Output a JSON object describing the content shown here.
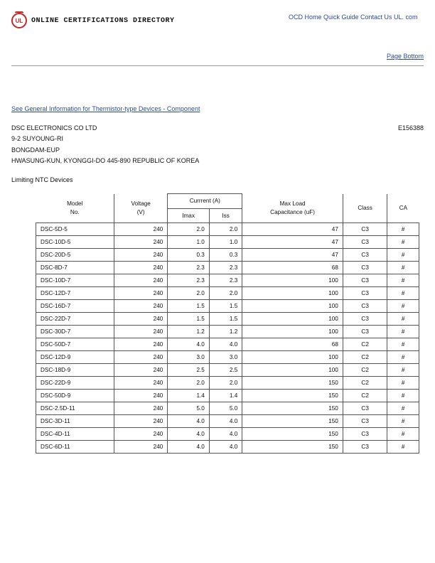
{
  "header": {
    "ul_mark": "UL",
    "directory_title": "ONLINE CERTIFICATIONS DIRECTORY",
    "nav": "OCD Home Quick Guide Contact Us UL. com",
    "page_bottom_link": "Page Bottom"
  },
  "general_info_link": "See General Information for Thermistor-type Devices - Component",
  "company": {
    "name": "DSC ELECTRONICS CO LTD",
    "addr1": "9-2 SUYOUNG-RI",
    "addr2": "BONGDAM-EUP",
    "addr3": "HWASUNG-KUN, KYONGGI-DO 445-890 REPUBLIC OF KOREA",
    "code": "E156388"
  },
  "subtitle": "Limiting NTC Devices",
  "table": {
    "group_header": "Currrent (A)",
    "columns": {
      "model": "Model\nNo.",
      "voltage": "Voltage\n(V)",
      "imax": "Imax",
      "iss": "Iss",
      "maxload": "Max Load\nCapacitance (uF)",
      "class": "Class",
      "ca": "CA"
    },
    "rows": [
      {
        "model": "DSC-5D-5",
        "v": "240",
        "imax": "2.0",
        "iss": "2.0",
        "ml": "47",
        "cls": "C3",
        "ca": "#"
      },
      {
        "model": "DSC-10D-5",
        "v": "240",
        "imax": "1.0",
        "iss": "1.0",
        "ml": "47",
        "cls": "C3",
        "ca": "#"
      },
      {
        "model": "DSC-20D-5",
        "v": "240",
        "imax": "0.3",
        "iss": "0.3",
        "ml": "47",
        "cls": "C3",
        "ca": "#"
      },
      {
        "model": "DSC-8D-7",
        "v": "240",
        "imax": "2.3",
        "iss": "2.3",
        "ml": "68",
        "cls": "C3",
        "ca": "#"
      },
      {
        "model": "DSC-10D-7",
        "v": "240",
        "imax": "2.3",
        "iss": "2.3",
        "ml": "100",
        "cls": "C3",
        "ca": "#"
      },
      {
        "model": "DSC-12D-7",
        "v": "240",
        "imax": "2.0",
        "iss": "2.0",
        "ml": "100",
        "cls": "C3",
        "ca": "#"
      },
      {
        "model": "DSC-16D-7",
        "v": "240",
        "imax": "1.5",
        "iss": "1.5",
        "ml": "100",
        "cls": "C3",
        "ca": "#"
      },
      {
        "model": "DSC-22D-7",
        "v": "240",
        "imax": "1.5",
        "iss": "1.5",
        "ml": "100",
        "cls": "C3",
        "ca": "#"
      },
      {
        "model": "DSC-30D-7",
        "v": "240",
        "imax": "1.2",
        "iss": "1.2",
        "ml": "100",
        "cls": "C3",
        "ca": "#"
      },
      {
        "model": "DSC-50D-7",
        "v": "240",
        "imax": "4.0",
        "iss": "4.0",
        "ml": "68",
        "cls": "C2",
        "ca": "#"
      },
      {
        "model": "DSC-12D-9",
        "v": "240",
        "imax": "3.0",
        "iss": "3.0",
        "ml": "100",
        "cls": "C2",
        "ca": "#"
      },
      {
        "model": "DSC-18D-9",
        "v": "240",
        "imax": "2.5",
        "iss": "2.5",
        "ml": "100",
        "cls": "C2",
        "ca": "#"
      },
      {
        "model": "DSC-22D-9",
        "v": "240",
        "imax": "2.0",
        "iss": "2.0",
        "ml": "150",
        "cls": "C2",
        "ca": "#"
      },
      {
        "model": "DSC-50D-9",
        "v": "240",
        "imax": "1.4",
        "iss": "1.4",
        "ml": "150",
        "cls": "C2",
        "ca": "#"
      },
      {
        "model": "DSC-2.5D-11",
        "v": "240",
        "imax": "5.0",
        "iss": "5.0",
        "ml": "150",
        "cls": "C3",
        "ca": "#"
      },
      {
        "model": "DSC-3D-11",
        "v": "240",
        "imax": "4.0",
        "iss": "4.0",
        "ml": "150",
        "cls": "C3",
        "ca": "#"
      },
      {
        "model": "DSC-4D-11",
        "v": "240",
        "imax": "4.0",
        "iss": "4.0",
        "ml": "150",
        "cls": "C3",
        "ca": "#"
      },
      {
        "model": "DSC-6D-11",
        "v": "240",
        "imax": "4.0",
        "iss": "4.0",
        "ml": "150",
        "cls": "C3",
        "ca": "#"
      }
    ]
  }
}
